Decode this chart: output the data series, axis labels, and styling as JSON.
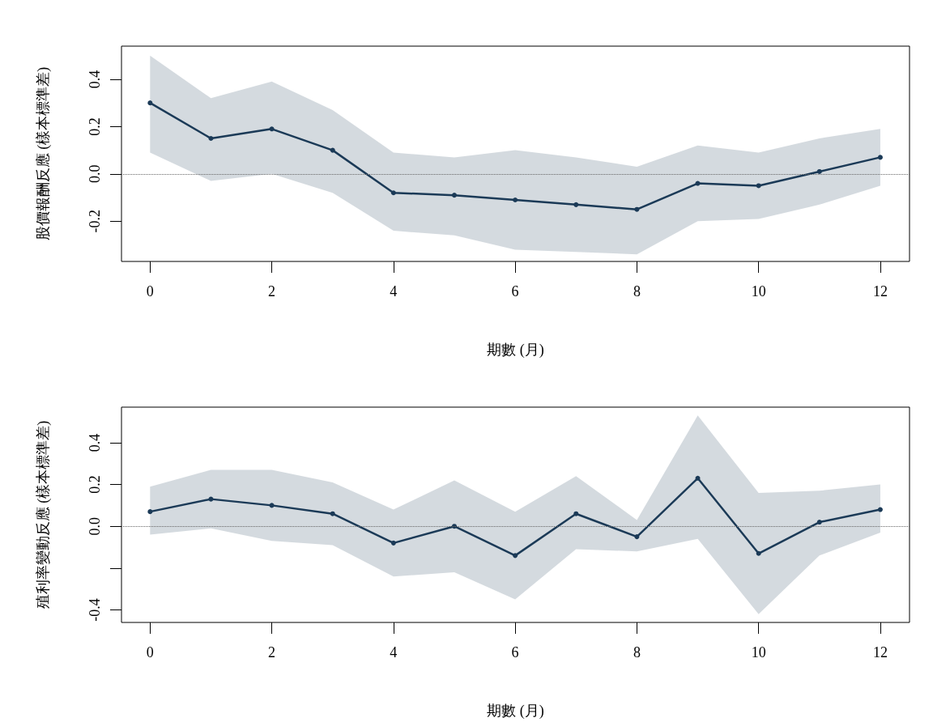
{
  "chart_data": [
    {
      "type": "line",
      "xlabel": "期數 (月)",
      "ylabel": "股價報酬反應 (樣本標準差)",
      "x": [
        0,
        1,
        2,
        3,
        4,
        5,
        6,
        7,
        8,
        9,
        10,
        11,
        12
      ],
      "series": [
        {
          "color": "#1b3a57",
          "values": [
            0.3,
            0.15,
            0.19,
            0.1,
            -0.08,
            -0.09,
            -0.11,
            -0.13,
            -0.15,
            -0.04,
            -0.05,
            0.01,
            0.07
          ],
          "lower": [
            0.09,
            -0.03,
            0,
            -0.08,
            -0.24,
            -0.26,
            -0.32,
            -0.33,
            -0.34,
            -0.2,
            -0.19,
            -0.13,
            -0.05
          ],
          "upper": [
            0.5,
            0.32,
            0.39,
            0.27,
            0.09,
            0.07,
            0.1,
            0.07,
            0.03,
            0.12,
            0.09,
            0.15,
            0.19
          ]
        }
      ],
      "xlim": [
        -0.47,
        12.48
      ],
      "xticks": [
        0,
        2,
        4,
        6,
        8,
        10,
        12
      ],
      "ylim": [
        -0.37,
        0.54
      ],
      "yticks": [
        {
          "value": -0.2,
          "label": "-0.2"
        },
        {
          "value": 0,
          "label": "0.0"
        },
        {
          "value": 0.2,
          "label": "0.2"
        },
        {
          "value": 0.4,
          "label": "0.4"
        }
      ],
      "ref_lines": [
        {
          "axis": "y",
          "value": 0,
          "color": "#666666",
          "line_style": "dotted"
        }
      ],
      "marker": "circle",
      "line_style": "solid",
      "grid": false
    },
    {
      "type": "line",
      "xlabel": "期數 (月)",
      "ylabel": "殖利率變動反應 (樣本標準差)",
      "x": [
        0,
        1,
        2,
        3,
        4,
        5,
        6,
        7,
        8,
        9,
        10,
        11,
        12
      ],
      "series": [
        {
          "color": "#1b3a57",
          "values": [
            0.07,
            0.13,
            0.1,
            0.06,
            -0.08,
            0,
            -0.14,
            0.06,
            -0.05,
            0.23,
            -0.13,
            0.02,
            0.08
          ],
          "lower": [
            -0.04,
            -0.01,
            -0.07,
            -0.09,
            -0.24,
            -0.22,
            -0.35,
            -0.11,
            -0.12,
            -0.06,
            -0.42,
            -0.14,
            -0.03
          ],
          "upper": [
            0.19,
            0.27,
            0.27,
            0.21,
            0.08,
            0.22,
            0.07,
            0.24,
            0.03,
            0.53,
            0.16,
            0.17,
            0.2
          ]
        }
      ],
      "xlim": [
        -0.47,
        12.48
      ],
      "xticks": [
        0,
        2,
        4,
        6,
        8,
        10,
        12
      ],
      "ylim": [
        -0.46,
        0.57
      ],
      "yticks": [
        {
          "value": -0.4,
          "label": "-0.4"
        },
        {
          "value": -0.2,
          "label": null
        },
        {
          "value": 0,
          "label": "0.0"
        },
        {
          "value": 0.2,
          "label": "0.2"
        },
        {
          "value": 0.4,
          "label": "0.4"
        }
      ],
      "ref_lines": [
        {
          "axis": "y",
          "value": 0,
          "color": "#666666",
          "line_style": "dotted"
        }
      ],
      "marker": "circle",
      "line_style": "solid",
      "grid": false
    }
  ]
}
